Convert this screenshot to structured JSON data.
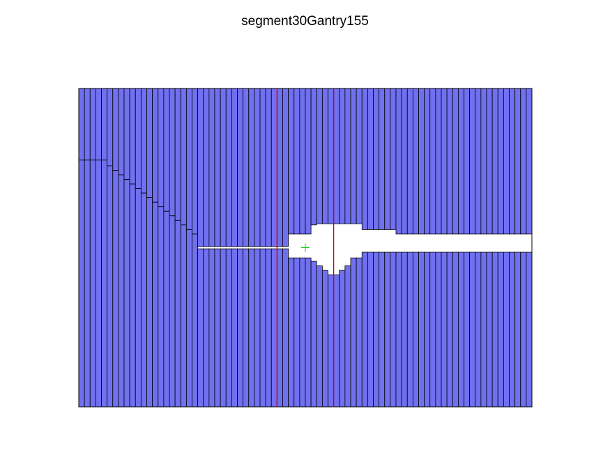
{
  "figure": {
    "title": "segment30Gantry155"
  },
  "colors": {
    "leaf_fill": "#7070f0",
    "leaf_edge": "#000000",
    "aperture": "#ffffff",
    "jaw_line": "#cc0000",
    "isocenter": "#00cc00"
  },
  "field": {
    "x_range": [
      -20,
      20
    ],
    "y_range": [
      -14,
      14
    ]
  },
  "leaves": {
    "count": 80,
    "width": 0.5,
    "centers": [
      -19.75,
      -19.25,
      -18.75,
      -18.25,
      -17.75,
      -17.25,
      -16.75,
      -16.25,
      -15.75,
      -15.25,
      -14.75,
      -14.25,
      -13.75,
      -13.25,
      -12.75,
      -12.25,
      -11.75,
      -11.25,
      -10.75,
      -10.25,
      -9.75,
      -9.25,
      -8.75,
      -8.25,
      -7.75,
      -7.25,
      -6.75,
      -6.25,
      -5.75,
      -5.25,
      -4.75,
      -4.25,
      -3.75,
      -3.25,
      -2.75,
      -2.25,
      -1.75,
      -1.25,
      -0.75,
      -0.25,
      0.25,
      0.75,
      1.25,
      1.75,
      2.25,
      2.75,
      3.25,
      3.75,
      4.25,
      4.75,
      5.25,
      5.75,
      6.25,
      6.75,
      7.25,
      7.75,
      8.25,
      8.75,
      9.25,
      9.75,
      10.25,
      10.75,
      11.25,
      11.75,
      12.25,
      12.75,
      13.25,
      13.75,
      14.25,
      14.75,
      15.25,
      15.75,
      16.25,
      16.75,
      17.25,
      17.75,
      18.25,
      18.75,
      19.25,
      19.75
    ],
    "upper_bank_tips": [
      7.7,
      7.7,
      7.7,
      7.7,
      7.7,
      7.2,
      6.8,
      6.4,
      6.0,
      5.6,
      5.2,
      4.8,
      4.4,
      4.0,
      3.6,
      3.2,
      2.8,
      2.4,
      2.0,
      1.6,
      1.2,
      0.1,
      0.1,
      0.1,
      0.1,
      0.1,
      0.1,
      0.1,
      0.1,
      0.1,
      0.1,
      0.1,
      0.1,
      0.1,
      0.1,
      0.1,
      0.1,
      1.2,
      1.2,
      1.2,
      1.2,
      2.0,
      2.1,
      2.1,
      2.1,
      2.1,
      2.1,
      2.1,
      2.1,
      2.1,
      1.6,
      1.6,
      1.6,
      1.6,
      1.6,
      1.6,
      1.2,
      1.2,
      1.2,
      1.2,
      1.2,
      1.2,
      1.2,
      1.2,
      1.2,
      1.2,
      1.2,
      1.2,
      1.2,
      1.2,
      1.2,
      1.2,
      1.2,
      1.2,
      1.2,
      1.2,
      1.2,
      1.2,
      1.2,
      1.2
    ],
    "lower_bank_tips": [
      7.7,
      7.7,
      7.7,
      7.7,
      7.7,
      7.2,
      6.8,
      6.4,
      6.0,
      5.6,
      5.2,
      4.8,
      4.4,
      4.0,
      3.6,
      3.2,
      2.8,
      2.4,
      2.0,
      1.6,
      1.2,
      -0.1,
      -0.1,
      -0.1,
      -0.1,
      -0.1,
      -0.1,
      -0.1,
      -0.1,
      -0.1,
      -0.1,
      -0.1,
      -0.1,
      -0.1,
      -0.1,
      -0.1,
      -0.1,
      -0.9,
      -0.9,
      -0.9,
      -0.9,
      -1.2,
      -1.6,
      -2.0,
      -2.4,
      -2.4,
      -2.0,
      -1.6,
      -0.9,
      -0.9,
      -0.4,
      -0.4,
      -0.4,
      -0.4,
      -0.4,
      -0.4,
      -0.4,
      -0.4,
      -0.4,
      -0.4,
      -0.4,
      -0.4,
      -0.4,
      -0.4,
      -0.4,
      -0.4,
      -0.4,
      -0.4,
      -0.4,
      -0.4,
      -0.4,
      -0.4,
      -0.4,
      -0.4,
      -0.4,
      -0.4,
      -0.4,
      -0.4,
      -0.4,
      -0.4
    ]
  },
  "jaws": {
    "x1": -2.5,
    "x2": 2.5
  },
  "isocenter": {
    "x": 0,
    "y": 0
  }
}
